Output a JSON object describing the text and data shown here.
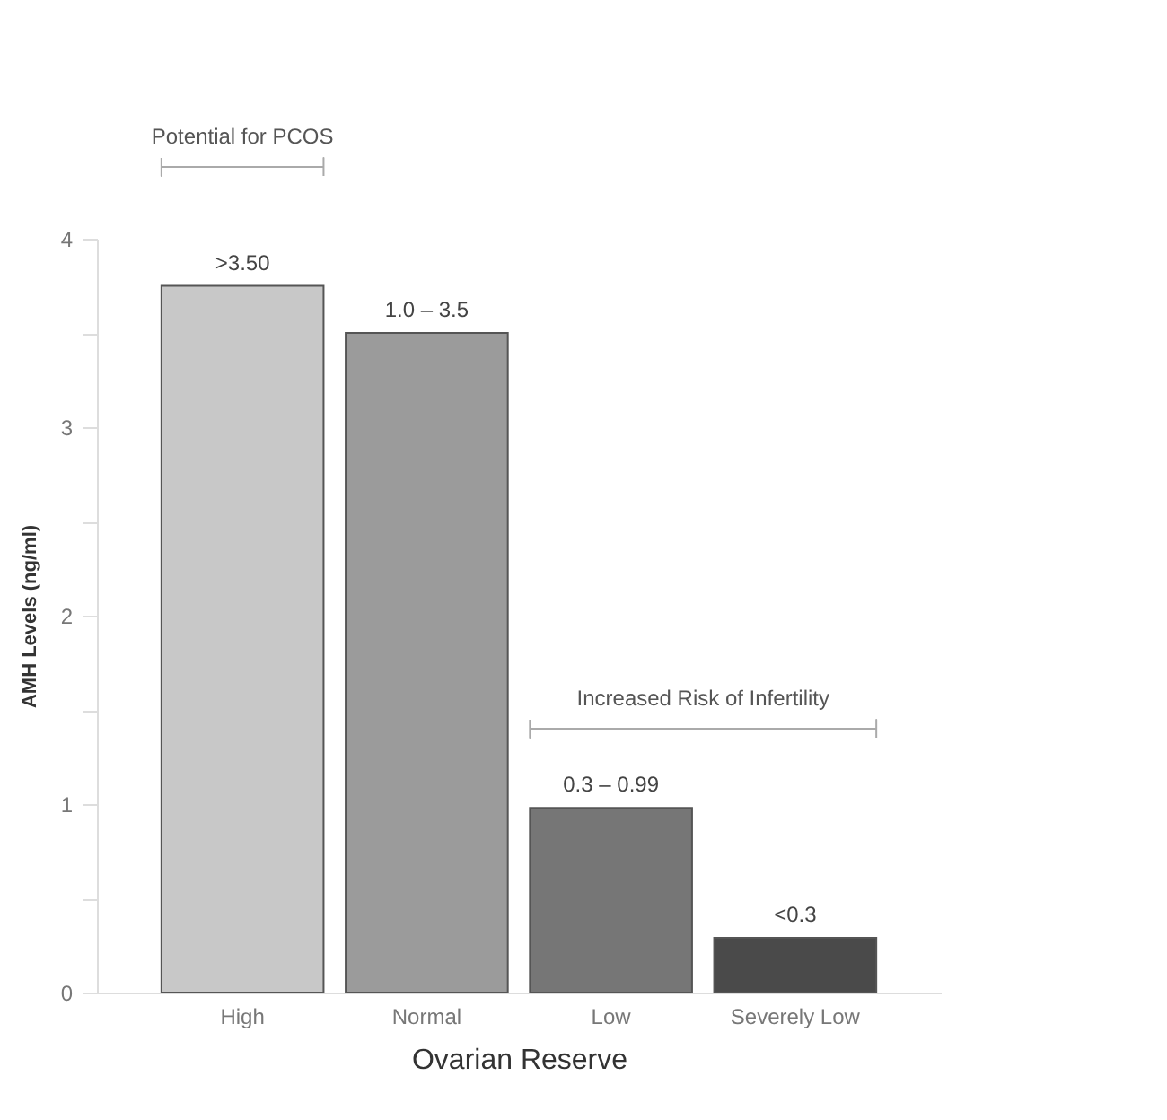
{
  "chart_data": {
    "type": "bar",
    "xlabel": "Ovarian Reserve",
    "ylabel": "AMH Levels (ng/ml)",
    "categories": [
      "High",
      "Normal",
      "Low",
      "Severely Low"
    ],
    "values": [
      3.75,
      3.5,
      0.98,
      0.29
    ],
    "colors": [
      "#c8c8c8",
      "#9b9b9b",
      "#767676",
      "#4a4a4a"
    ],
    "ylim": [
      0,
      4
    ],
    "yticks": [
      0,
      {
        "value": 0.5,
        "label": null
      },
      1,
      {
        "value": 1.5,
        "label": null
      },
      2,
      {
        "value": 2.5,
        "label": null
      },
      3,
      {
        "value": 3.5,
        "label": null
      },
      4
    ],
    "annotations": [
      "Potential for PCOS",
      "Increased Risk of Infertility",
      {
        "text": ">3.50",
        "x": "High",
        "y": 3.75
      },
      {
        "text": "1.0 – 3.5",
        "x": "Normal",
        "y": 3.5
      },
      {
        "text": "0.3 – 0.99",
        "x": "Low",
        "y": 0.98
      },
      {
        "text": "<0.3",
        "x": "Severely Low",
        "y": 0.29
      }
    ],
    "grid": false,
    "legend": false
  }
}
